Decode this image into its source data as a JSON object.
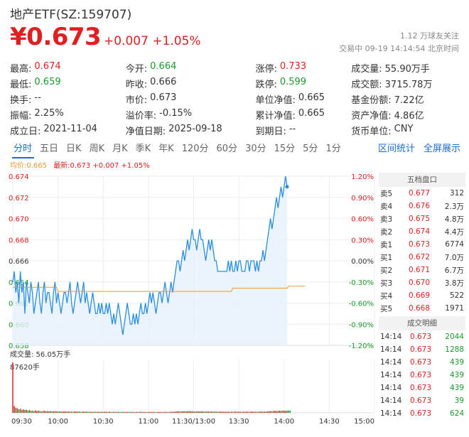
{
  "header": {
    "title": "地产ETF(SZ:159707)",
    "price": "¥0.673",
    "change": "+0.007 +1.05%",
    "followers": "1.12 万球友关注",
    "market_status": "交易中 09-19 14:14:54 北京时间"
  },
  "stats": [
    [
      {
        "label": "最高:",
        "value": "0.674",
        "color": "up"
      },
      {
        "label": "今开:",
        "value": "0.664",
        "color": "dn"
      },
      {
        "label": "涨停:",
        "value": "0.733",
        "color": "up"
      },
      {
        "label": "成交量:",
        "value": "55.90万手",
        "color": ""
      }
    ],
    [
      {
        "label": "最低:",
        "value": "0.659",
        "color": "dn"
      },
      {
        "label": "昨收:",
        "value": "0.666",
        "color": ""
      },
      {
        "label": "跌停:",
        "value": "0.599",
        "color": "dn"
      },
      {
        "label": "成交额:",
        "value": "3715.78万",
        "color": ""
      }
    ],
    [
      {
        "label": "换手:",
        "value": "--",
        "color": ""
      },
      {
        "label": "市价:",
        "value": "0.673",
        "color": ""
      },
      {
        "label": "单位净值:",
        "value": "0.665",
        "color": ""
      },
      {
        "label": "基金份额:",
        "value": "7.22亿",
        "color": ""
      }
    ],
    [
      {
        "label": "振幅:",
        "value": "2.25%",
        "color": ""
      },
      {
        "label": "溢价率:",
        "value": "-0.15%",
        "color": ""
      },
      {
        "label": "累计净值:",
        "value": "0.665",
        "color": ""
      },
      {
        "label": "资产净值:",
        "value": "4.86亿",
        "color": ""
      }
    ],
    [
      {
        "label": "成立日:",
        "value": "2021-11-04",
        "color": ""
      },
      {
        "label": "净值日期:",
        "value": "2025-09-18",
        "color": ""
      },
      {
        "label": "到期日:",
        "value": "--",
        "color": ""
      },
      {
        "label": "货币单位:",
        "value": "CNY",
        "color": ""
      }
    ]
  ],
  "tabs": [
    "分时",
    "五日",
    "日K",
    "周K",
    "月K",
    "季K",
    "年K",
    "120分",
    "60分",
    "30分",
    "15分",
    "5分",
    "1分"
  ],
  "active_tab": "分时",
  "tab_actions": [
    "区间统计",
    "全屏展示"
  ],
  "legend": {
    "avg": "均价:0.665",
    "last": "最新:0.673 +0.007 +1.05%"
  },
  "volume_label": "成交量: 56.05万手",
  "volume_max_label": "87620手",
  "order_book": {
    "title": "五档盘口",
    "asks": [
      {
        "name": "卖5",
        "price": "0.677",
        "vol": "312"
      },
      {
        "name": "卖4",
        "price": "0.676",
        "vol": "2.3万"
      },
      {
        "name": "卖3",
        "price": "0.675",
        "vol": "4.8万"
      },
      {
        "name": "卖2",
        "price": "0.674",
        "vol": "4.4万"
      },
      {
        "name": "卖1",
        "price": "0.673",
        "vol": "6774"
      }
    ],
    "bids": [
      {
        "name": "买1",
        "price": "0.672",
        "vol": "7.0万"
      },
      {
        "name": "买2",
        "price": "0.671",
        "vol": "6.7万"
      },
      {
        "name": "买3",
        "price": "0.670",
        "vol": "3.8万"
      },
      {
        "name": "买4",
        "price": "0.669",
        "vol": "522"
      },
      {
        "name": "买5",
        "price": "0.668",
        "vol": "1971"
      }
    ],
    "detail_title": "成交明细",
    "trades": [
      {
        "time": "14:14",
        "price": "0.673",
        "vol": "2044"
      },
      {
        "time": "14:14",
        "price": "0.673",
        "vol": "1288"
      },
      {
        "time": "14:14",
        "price": "0.673",
        "vol": "439"
      },
      {
        "time": "14:14",
        "price": "0.673",
        "vol": "439"
      },
      {
        "time": "14:14",
        "price": "0.673",
        "vol": "439"
      },
      {
        "time": "14:14",
        "price": "0.673",
        "vol": "39"
      },
      {
        "time": "14:14",
        "price": "0.673",
        "vol": "624"
      }
    ]
  },
  "colors": {
    "up": "#e02020",
    "down": "#1a9a2a",
    "price_line": "#2a8ee0",
    "avg_line": "#e69a2e",
    "accent": "#1a6fd0"
  },
  "chart_data": {
    "type": "line",
    "prev_close": 0.666,
    "ylim": [
      0.658,
      0.674
    ],
    "left_ticks": [
      "0.674",
      "0.672",
      "0.670",
      "0.668",
      "0.666",
      "0.664",
      "0.662",
      "0.660",
      "0.658"
    ],
    "right_ticks": [
      "1.20%",
      "0.90%",
      "0.60%",
      "0.30%",
      "0.00%",
      "-0.30%",
      "-0.60%",
      "-0.90%",
      "-1.20%"
    ],
    "x_ticks": [
      "09:30",
      "10:00",
      "10:30",
      "11:00",
      "11:30/13:00",
      "13:30",
      "14:00",
      "14:30",
      "15:00"
    ],
    "total_minutes": 240,
    "price": [
      0.664,
      0.665,
      0.663,
      0.664,
      0.662,
      0.665,
      0.663,
      0.664,
      0.661,
      0.664,
      0.663,
      0.662,
      0.664,
      0.663,
      0.661,
      0.662,
      0.663,
      0.664,
      0.662,
      0.661,
      0.663,
      0.664,
      0.662,
      0.663,
      0.663,
      0.662,
      0.661,
      0.663,
      0.664,
      0.662,
      0.663,
      0.662,
      0.661,
      0.662,
      0.663,
      0.663,
      0.662,
      0.663,
      0.664,
      0.662,
      0.661,
      0.662,
      0.663,
      0.664,
      0.663,
      0.662,
      0.663,
      0.664,
      0.662,
      0.663,
      0.662,
      0.661,
      0.662,
      0.663,
      0.662,
      0.661,
      0.661,
      0.662,
      0.661,
      0.662,
      0.661,
      0.661,
      0.662,
      0.661,
      0.662,
      0.661,
      0.66,
      0.661,
      0.66,
      0.661,
      0.662,
      0.661,
      0.66,
      0.659,
      0.66,
      0.661,
      0.662,
      0.661,
      0.66,
      0.66,
      0.661,
      0.66,
      0.661,
      0.66,
      0.661,
      0.662,
      0.661,
      0.661,
      0.662,
      0.661,
      0.662,
      0.663,
      0.662,
      0.663,
      0.662,
      0.661,
      0.662,
      0.663,
      0.663,
      0.662,
      0.663,
      0.664,
      0.663,
      0.662,
      0.663,
      0.664,
      0.663,
      0.664,
      0.665,
      0.666,
      0.666,
      0.665,
      0.666,
      0.667,
      0.666,
      0.667,
      0.668,
      0.667,
      0.668,
      0.669,
      0.668,
      0.668,
      0.667,
      0.668,
      0.669,
      0.668,
      0.668,
      0.667,
      0.666,
      0.667,
      0.668,
      0.667,
      0.668,
      0.667,
      0.666,
      0.666,
      0.665,
      0.665,
      0.665,
      0.665,
      0.665,
      0.665,
      0.665,
      0.666,
      0.665,
      0.666,
      0.665,
      0.665,
      0.666,
      0.665,
      0.666,
      0.666,
      0.665,
      0.665,
      0.665,
      0.666,
      0.666,
      0.665,
      0.666,
      0.666,
      0.666,
      0.665,
      0.666,
      0.665,
      0.666,
      0.666,
      0.667,
      0.666,
      0.667,
      0.668,
      0.669,
      0.67,
      0.669,
      0.67,
      0.671,
      0.672,
      0.671,
      0.672,
      0.673,
      0.672,
      0.673,
      0.674,
      0.673
    ],
    "avg": [
      0.6635,
      0.6635,
      0.6635,
      0.6635,
      0.6635,
      0.6635,
      0.6635,
      0.6635,
      0.6635,
      0.6635,
      0.6635,
      0.6635,
      0.6635,
      0.6635,
      0.6635,
      0.6635,
      0.6635,
      0.6635,
      0.6635,
      0.6635,
      0.6635,
      0.6635,
      0.6635,
      0.6635,
      0.6635,
      0.6635,
      0.6635,
      0.6635,
      0.6635,
      0.6635,
      0.6631,
      0.6631,
      0.6631,
      0.6631,
      0.6631,
      0.6631,
      0.6631,
      0.6631,
      0.6631,
      0.6631,
      0.6631,
      0.6631,
      0.6631,
      0.6631,
      0.6631,
      0.6631,
      0.6631,
      0.6631,
      0.6631,
      0.6631,
      0.6631,
      0.6631,
      0.6631,
      0.6631,
      0.6631,
      0.6631,
      0.6631,
      0.6631,
      0.6631,
      0.6631,
      0.6631,
      0.6631,
      0.6631,
      0.6631,
      0.6631,
      0.6631,
      0.6631,
      0.6631,
      0.6631,
      0.6631,
      0.6631,
      0.6631,
      0.6631,
      0.6631,
      0.6631,
      0.6631,
      0.6631,
      0.6631,
      0.6631,
      0.6631,
      0.6631,
      0.6631,
      0.6631,
      0.6631,
      0.6631,
      0.6631,
      0.6631,
      0.6631,
      0.6631,
      0.6631,
      0.6631,
      0.6631,
      0.6631,
      0.6631,
      0.6631,
      0.6631,
      0.6631,
      0.6631,
      0.6631,
      0.6631,
      0.6631,
      0.6631,
      0.6631,
      0.6631,
      0.6631,
      0.6631,
      0.6631,
      0.6631,
      0.6631,
      0.6631,
      0.6631,
      0.6631,
      0.6631,
      0.6631,
      0.6631,
      0.6631,
      0.6631,
      0.6631,
      0.6631,
      0.6631,
      0.6631,
      0.6631,
      0.6631,
      0.6631,
      0.6631,
      0.6631,
      0.6631,
      0.6631,
      0.6631,
      0.6631,
      0.6631,
      0.6631,
      0.6631,
      0.6631,
      0.6631,
      0.6631,
      0.6631,
      0.6631,
      0.6631,
      0.6631,
      0.6631,
      0.6631,
      0.6631,
      0.6631,
      0.6631,
      0.6631,
      0.6634,
      0.6634,
      0.6634,
      0.6634,
      0.6634,
      0.6634,
      0.6634,
      0.6634,
      0.6634,
      0.6634,
      0.6634,
      0.6634,
      0.6634,
      0.6634,
      0.6634,
      0.6634,
      0.6634,
      0.6634,
      0.6634,
      0.6634,
      0.6634,
      0.6634,
      0.6634,
      0.6634,
      0.6634,
      0.6634,
      0.6634,
      0.6634,
      0.6634,
      0.6634,
      0.6634,
      0.6634,
      0.6634,
      0.6634,
      0.6634,
      0.6634,
      0.6634,
      0.6636,
      0.6636,
      0.6636,
      0.6636,
      0.6636,
      0.6636,
      0.6636,
      0.6636,
      0.6636,
      0.6636,
      0.6636,
      0.6636
    ],
    "volume": [
      87620,
      12000,
      9000,
      8000,
      6000,
      7000,
      5000,
      6000,
      5000,
      5500,
      4000,
      5000,
      3500,
      4000,
      3000,
      4500,
      3000,
      3500,
      3000,
      2500,
      3000,
      3500,
      2800,
      3000,
      2500,
      3200,
      2600,
      2400,
      3000,
      2800,
      2200,
      2600,
      2400,
      2000,
      2500,
      2300,
      2100,
      2400,
      2000,
      2200,
      1800,
      2600,
      2200,
      2000,
      2400,
      1800,
      2000,
      2200,
      1900,
      2100,
      1700,
      2000,
      1800,
      1600,
      2000,
      1800,
      1700,
      1900,
      1600,
      1800,
      1500,
      2000,
      1800,
      1600,
      1900,
      1700,
      1500,
      1800,
      1600,
      1400,
      1700,
      1500,
      1600,
      1800,
      1500,
      1400,
      1600,
      1500,
      1700,
      1400,
      1500,
      1300,
      1600,
      1400,
      1500,
      1700,
      1400,
      1600,
      1500,
      1300,
      1500,
      1400,
      1600,
      1500,
      1700,
      1400,
      1500,
      1600,
      1400,
      1500,
      1300,
      1600,
      1500,
      1700,
      1400,
      1800,
      2000,
      1700,
      2200,
      2500,
      2800,
      2300,
      2600,
      3000,
      2700,
      2400,
      2800,
      3200,
      2600,
      2900,
      2400,
      2200,
      2700,
      2500,
      2300,
      2600,
      2400,
      2100,
      2500,
      2300,
      2200,
      2000,
      2400,
      2100,
      2300,
      2000,
      1900,
      2200,
      2000,
      2100,
      1800,
      2000,
      1900,
      2100,
      1800,
      2000,
      1700,
      1900,
      2100,
      1800,
      2000,
      1900,
      1700,
      2000,
      1800,
      2100,
      1900,
      1800,
      2200,
      2000,
      1900,
      2100,
      1800,
      2000,
      2200,
      2100,
      1900,
      2300,
      2100,
      2400,
      2800,
      3000,
      2600,
      3200,
      3500,
      3000,
      3400,
      3800,
      3300,
      3600,
      4000,
      3500,
      3800,
      4200,
      3900
    ]
  }
}
